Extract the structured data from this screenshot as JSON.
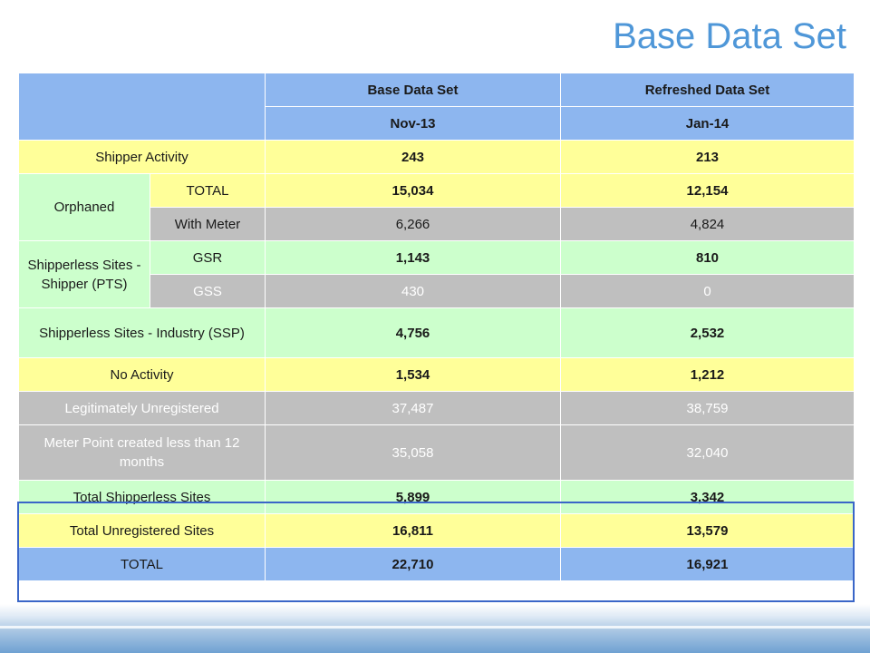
{
  "title": "Base Data Set",
  "header": {
    "col1": "Base Data Set",
    "col2": "Refreshed Data Set",
    "date1": "Nov-13",
    "date2": "Jan-14"
  },
  "rows": {
    "shipper_activity": {
      "label": "Shipper Activity",
      "v1": "243",
      "v2": "213"
    },
    "orphaned": {
      "label": "Orphaned",
      "total": {
        "label": "TOTAL",
        "v1": "15,034",
        "v2": "12,154"
      },
      "with_meter": {
        "label": "With Meter",
        "v1": "6,266",
        "v2": "4,824"
      }
    },
    "shipperless_pts": {
      "label": "Shipperless Sites - Shipper (PTS)",
      "gsr": {
        "label": "GSR",
        "v1": "1,143",
        "v2": "810"
      },
      "gss": {
        "label": "GSS",
        "v1": "430",
        "v2": "0"
      }
    },
    "shipperless_ssp": {
      "label": "Shipperless Sites - Industry (SSP)",
      "v1": "4,756",
      "v2": "2,532"
    },
    "no_activity": {
      "label": "No Activity",
      "v1": "1,534",
      "v2": "1,212"
    },
    "legit_unreg": {
      "label": "Legitimately Unregistered",
      "v1": "37,487",
      "v2": "38,759"
    },
    "meter_point": {
      "label": "Meter Point created less than 12 months",
      "v1": "35,058",
      "v2": "32,040"
    }
  },
  "summary": {
    "shipperless": {
      "label": "Total Shipperless Sites",
      "v1": "5,899",
      "v2": "3,342"
    },
    "unregistered": {
      "label": "Total Unregistered Sites",
      "v1": "16,811",
      "v2": "13,579"
    },
    "total": {
      "label": "TOTAL",
      "v1": "22,710",
      "v2": "16,921"
    }
  },
  "colors": {
    "title": "#4f97d8",
    "header": "#8db6ef",
    "yellow": "#ffff99",
    "gray": "#bfbfbf",
    "green": "#ccffcc",
    "summary_border": "#3a66c8"
  }
}
